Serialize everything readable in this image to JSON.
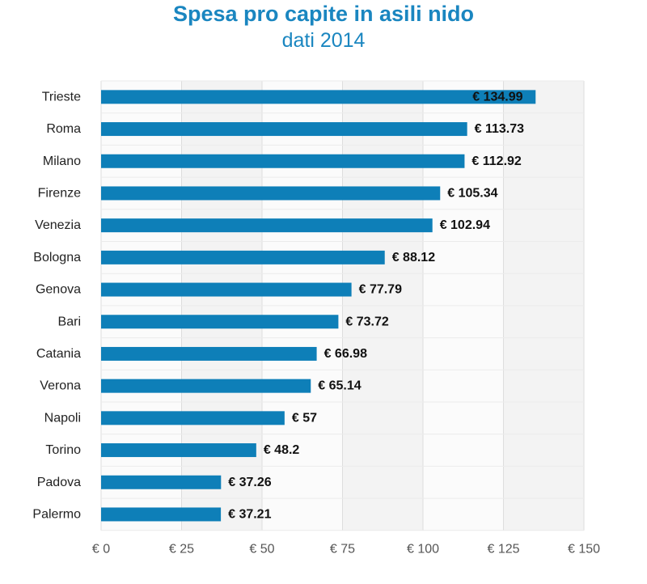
{
  "chart_data": {
    "type": "bar",
    "orientation": "horizontal",
    "title": "Spesa pro capite in asili nido",
    "subtitle": "dati 2014",
    "categories": [
      "Trieste",
      "Roma",
      "Milano",
      "Firenze",
      "Venezia",
      "Bologna",
      "Genova",
      "Bari",
      "Catania",
      "Verona",
      "Napoli",
      "Torino",
      "Padova",
      "Palermo"
    ],
    "values": [
      134.99,
      113.73,
      112.92,
      105.34,
      102.94,
      88.12,
      77.79,
      73.72,
      66.98,
      65.14,
      57,
      48.2,
      37.26,
      37.21
    ],
    "data_labels": [
      "€ 134.99",
      "€ 113.73",
      "€ 112.92",
      "€ 105.34",
      "€ 102.94",
      "€ 88.12",
      "€ 77.79",
      "€ 73.72",
      "€ 66.98",
      "€ 65.14",
      "€ 57",
      "€ 48.2",
      "€ 37.26",
      "€ 37.21"
    ],
    "xlim": [
      0,
      150
    ],
    "ticks": [
      0,
      25,
      50,
      75,
      100,
      125,
      150
    ],
    "tick_labels": [
      "€ 0",
      "€ 25",
      "€ 50",
      "€ 75",
      "€ 100",
      "€ 125",
      "€ 150"
    ],
    "grid": true,
    "legend": "none",
    "colors": {
      "bar": "#0e7fb8",
      "title": "#1a86c0",
      "grid": "#dddddd",
      "band_light": "#fbfbfb",
      "band_dark": "#f3f3f3"
    }
  }
}
